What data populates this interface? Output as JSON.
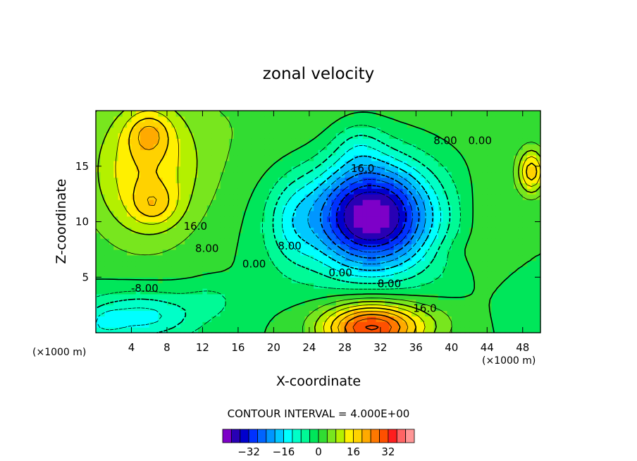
{
  "chart_data": {
    "type": "heatmap",
    "title": "zonal velocity",
    "xlabel": "X-coordinate",
    "ylabel": "Z-coordinate",
    "x_units_left": "(×1000 m)",
    "x_units_right": "(×1000 m)",
    "xlim": [
      0,
      50
    ],
    "ylim": [
      0,
      20
    ],
    "x_ticks": [
      4,
      8,
      12,
      16,
      20,
      24,
      28,
      32,
      36,
      40,
      44,
      48
    ],
    "y_ticks": [
      5,
      10,
      15
    ],
    "contour_interval_text": "CONTOUR INTERVAL = 4.000E+00",
    "contour_labels": [
      {
        "text": "16.0",
        "x": 11.2,
        "y": 9.6
      },
      {
        "text": "8.00",
        "x": 12.5,
        "y": 7.6
      },
      {
        "text": "0.00",
        "x": 17.8,
        "y": 6.2
      },
      {
        "text": "8.00",
        "x": 21.8,
        "y": 7.8
      },
      {
        "text": "16.0",
        "x": 30.0,
        "y": 14.8
      },
      {
        "text": "8.00",
        "x": 39.3,
        "y": 17.3
      },
      {
        "text": "0.00",
        "x": 43.2,
        "y": 17.3
      },
      {
        "text": "0.00",
        "x": 27.5,
        "y": 5.4
      },
      {
        "text": "8.00",
        "x": 33.0,
        "y": 4.4
      },
      {
        "text": "16.0",
        "x": 37.0,
        "y": 2.2
      },
      {
        "text": "-8.00",
        "x": 5.5,
        "y": 4.0
      }
    ],
    "features": [
      {
        "x": 28,
        "z": 19,
        "value": 6,
        "sx": 16,
        "sz": 7
      },
      {
        "x": 5.5,
        "z": 14.5,
        "value": 15,
        "sx": 6.5,
        "sz": 6.5
      },
      {
        "x": 6,
        "z": 18,
        "value": 10,
        "sx": 2.5,
        "sz": 2
      },
      {
        "x": 6.5,
        "z": 11.5,
        "value": 8,
        "sx": 2.5,
        "sz": 1.8
      },
      {
        "x": 31,
        "z": 10.5,
        "value": -36,
        "sx": 6.5,
        "sz": 4.5
      },
      {
        "x": 31,
        "z": 12,
        "value": -10,
        "sx": 9,
        "sz": 8
      },
      {
        "x": 29.5,
        "z": 17,
        "value": -6,
        "sx": 3,
        "sz": 2.5
      },
      {
        "x": 31,
        "z": 0.5,
        "value": 34,
        "sx": 5.5,
        "sz": 2.3
      },
      {
        "x": 38,
        "z": 1,
        "value": 3,
        "sx": 4,
        "sz": 2
      },
      {
        "x": 5,
        "z": 1.5,
        "value": -14,
        "sx": 6.5,
        "sz": 2.2
      },
      {
        "x": 1,
        "z": 0.8,
        "value": -6,
        "sx": 2,
        "sz": 1.2
      },
      {
        "x": 13,
        "z": 3,
        "value": -4,
        "sx": 3,
        "sz": 1.5
      },
      {
        "x": 22,
        "z": 10,
        "value": -8,
        "sx": 3,
        "sz": 4
      },
      {
        "x": 44,
        "z": 10,
        "value": 4,
        "sx": 3,
        "sz": 5
      },
      {
        "x": 49,
        "z": 14.5,
        "value": 18,
        "sx": 1.5,
        "sz": 2
      },
      {
        "x": 48,
        "z": 2.5,
        "value": -3,
        "sx": 2.5,
        "sz": 2.2
      },
      {
        "x": 40.5,
        "z": 7.5,
        "value": 2,
        "sx": 3,
        "sz": 1.5
      }
    ]
  },
  "colorbar": {
    "tick_labels": [
      "−32",
      "−16",
      "0",
      "16",
      "32"
    ],
    "colors": [
      "#7d00c8",
      "#2800b4",
      "#0000cd",
      "#0032ff",
      "#0064ff",
      "#0096ff",
      "#00c8ff",
      "#00ffff",
      "#00ffc8",
      "#00fa96",
      "#00e65a",
      "#32dc32",
      "#78e61e",
      "#b4f000",
      "#fff000",
      "#ffd200",
      "#ffaa00",
      "#ff7800",
      "#ff5000",
      "#ff1e1e",
      "#ff6464",
      "#ff9696"
    ]
  }
}
